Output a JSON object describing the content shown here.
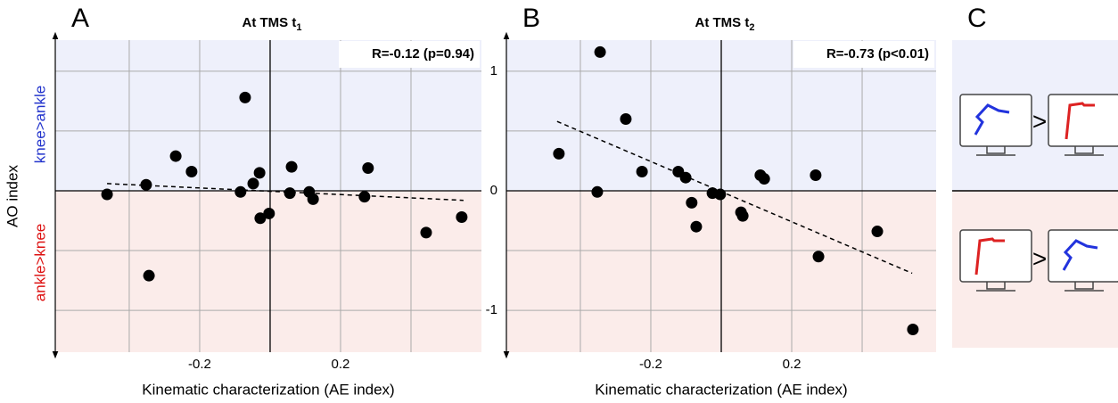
{
  "chart_data": [
    {
      "type": "scatter",
      "panel": "A",
      "title": "At TMS t",
      "title_subscript": "1",
      "annotation": "R=-0.12 (p=0.94)",
      "xlabel": "Kinematic characterization (AE index)",
      "ylabel": "AO index",
      "region_labels": {
        "upper": "knee>ankle",
        "lower": "ankle>knee"
      },
      "upper_color": "#eef0fb",
      "lower_color": "#fbecea",
      "x": [
        -0.463,
        -0.352,
        -0.344,
        -0.268,
        -0.223,
        -0.071,
        -0.084,
        -0.048,
        -0.03,
        -0.028,
        -0.003,
        0.061,
        0.056,
        0.111,
        0.122,
        0.268,
        0.278,
        0.443,
        0.544
      ],
      "y": [
        -0.03,
        0.05,
        -0.71,
        0.29,
        0.16,
        0.78,
        -0.01,
        0.06,
        0.15,
        -0.23,
        -0.19,
        0.2,
        -0.02,
        -0.01,
        -0.07,
        -0.05,
        0.19,
        -0.35,
        -0.22
      ],
      "color": "#000000",
      "trendline": {
        "x": [
          -0.463,
          0.549
        ],
        "y": [
          0.06,
          -0.08
        ]
      },
      "xlim": [
        -0.61,
        0.6
      ],
      "ylim": [
        -1.35,
        1.26
      ],
      "xticks": [
        -0.2,
        0.2
      ],
      "yticks": [],
      "xgrid": [
        -0.4,
        -0.2,
        0.2,
        0.4
      ],
      "ygrid": [
        -1,
        -0.5,
        0.5,
        1
      ],
      "grid": true
    },
    {
      "type": "scatter",
      "panel": "B",
      "title": "At TMS t",
      "title_subscript": "2",
      "annotation": "R=-0.73 (p<0.01)",
      "xlabel": "Kinematic characterization (AE index)",
      "upper_color": "#eef0fb",
      "lower_color": "#fbecea",
      "x": [
        -0.461,
        -0.344,
        -0.352,
        -0.271,
        -0.225,
        -0.122,
        -0.101,
        -0.025,
        -0.003,
        -0.084,
        -0.071,
        0.056,
        0.061,
        0.111,
        0.122,
        0.268,
        0.276,
        0.443,
        0.544
      ],
      "y": [
        0.31,
        1.16,
        -0.01,
        0.6,
        0.16,
        0.16,
        0.11,
        -0.02,
        -0.03,
        -0.1,
        -0.3,
        -0.18,
        -0.21,
        0.13,
        0.1,
        0.13,
        -0.55,
        -0.34,
        -1.16
      ],
      "color": "#000000",
      "trendline": {
        "x": [
          -0.466,
          0.542
        ],
        "y": [
          0.58,
          -0.69
        ]
      },
      "xlim": [
        -0.61,
        0.61
      ],
      "ylim": [
        -1.35,
        1.26
      ],
      "xticks": [
        -0.2,
        0.2
      ],
      "yticks": [
        -1,
        0,
        1
      ],
      "xgrid": [
        -0.4,
        -0.2,
        0.2,
        0.4
      ],
      "ygrid": [
        -1,
        -0.5,
        0.5,
        1
      ],
      "grid": true
    }
  ],
  "panel_c": {
    "label": "C",
    "symbols": [
      ">",
      ">"
    ]
  }
}
